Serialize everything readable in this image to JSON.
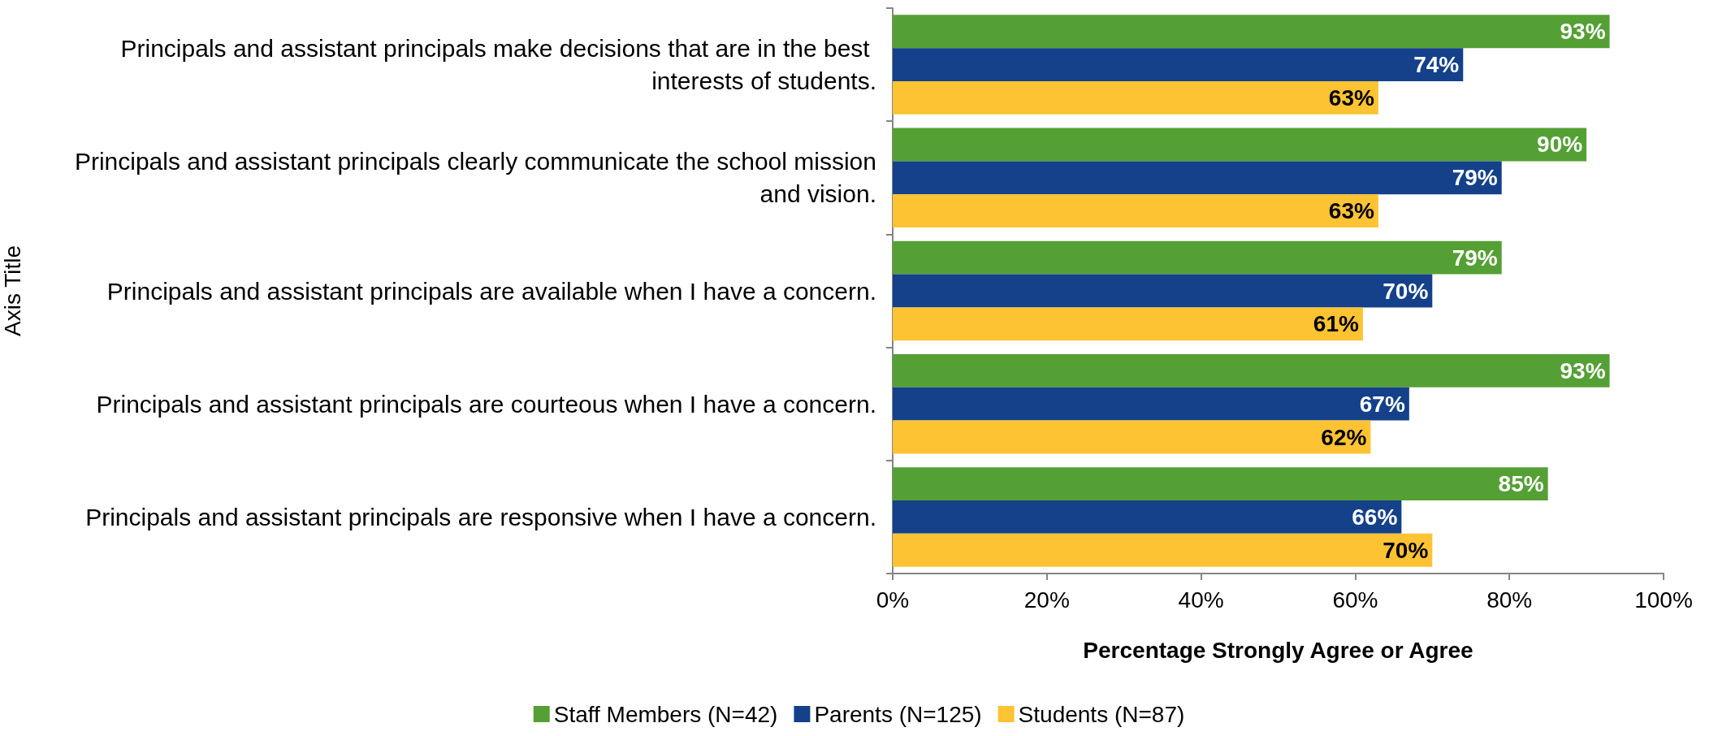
{
  "chart_data": {
    "type": "bar",
    "orientation": "horizontal",
    "xlabel": "Percentage Strongly Agree or Agree",
    "ylabel": "Axis Title",
    "categories": [
      "Principals and assistant principals make decisions that are in the best interests of students.",
      "Principals and assistant principals clearly communicate the school mission and vision.",
      "Principals and assistant principals are available when I have a concern.",
      "Principals and assistant principals are courteous when I have a concern.",
      "Principals and assistant principals are responsive when I have a concern."
    ],
    "series": [
      {
        "name": "Staff Members (N=42)",
        "color": "#55a035",
        "values": [
          93,
          90,
          79,
          93,
          85
        ],
        "value_labels": [
          "93%",
          "90%",
          "79%",
          "93%",
          "85%"
        ]
      },
      {
        "name": "Parents (N=125)",
        "color": "#14418a",
        "values": [
          74,
          79,
          70,
          67,
          66
        ],
        "value_labels": [
          "74%",
          "79%",
          "70%",
          "67%",
          "66%"
        ]
      },
      {
        "name": "Students (N=87)",
        "color": "#fec332",
        "values": [
          63,
          63,
          61,
          62,
          70
        ],
        "value_labels": [
          "63%",
          "63%",
          "61%",
          "62%",
          "70%"
        ]
      }
    ],
    "xlim": [
      0,
      100
    ],
    "xticks": [
      {
        "value": 0,
        "label": "0%"
      },
      {
        "value": 20,
        "label": "20%"
      },
      {
        "value": 40,
        "label": "40%"
      },
      {
        "value": 60,
        "label": "60%"
      },
      {
        "value": 80,
        "label": "80%"
      },
      {
        "value": 100,
        "label": "100%"
      }
    ],
    "grid": false,
    "legend": "bottom"
  }
}
